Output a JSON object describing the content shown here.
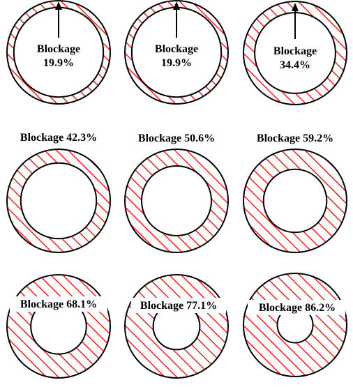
{
  "colors": {
    "hatch": "#ff1a1a",
    "outline": "#000000",
    "lumen": "#ffffff",
    "background": "#ffffff"
  },
  "diagrams": [
    {
      "label": "Blockage",
      "value": "19.9%",
      "blockage_fraction": 0.199,
      "label_style": "inside-arrow"
    },
    {
      "label": "Blockage",
      "value": "19.9%",
      "blockage_fraction": 0.199,
      "label_style": "inside-arrow"
    },
    {
      "label": "Blockage",
      "value": "34.4%",
      "blockage_fraction": 0.344,
      "label_style": "inside-arrow"
    },
    {
      "label": "Blockage 42.3%",
      "blockage_fraction": 0.423,
      "label_style": "above"
    },
    {
      "label": "Blockage 50.6%",
      "blockage_fraction": 0.506,
      "label_style": "above"
    },
    {
      "label": "Blockage 59.2%",
      "blockage_fraction": 0.592,
      "label_style": "above"
    },
    {
      "label": "Blockage 68.1%",
      "blockage_fraction": 0.681,
      "label_style": "inside-top"
    },
    {
      "label": "Blockage 77.1%",
      "blockage_fraction": 0.771,
      "label_style": "inside-top"
    },
    {
      "label": "Blockage 86.2%",
      "blockage_fraction": 0.862,
      "label_style": "inside-top"
    }
  ]
}
